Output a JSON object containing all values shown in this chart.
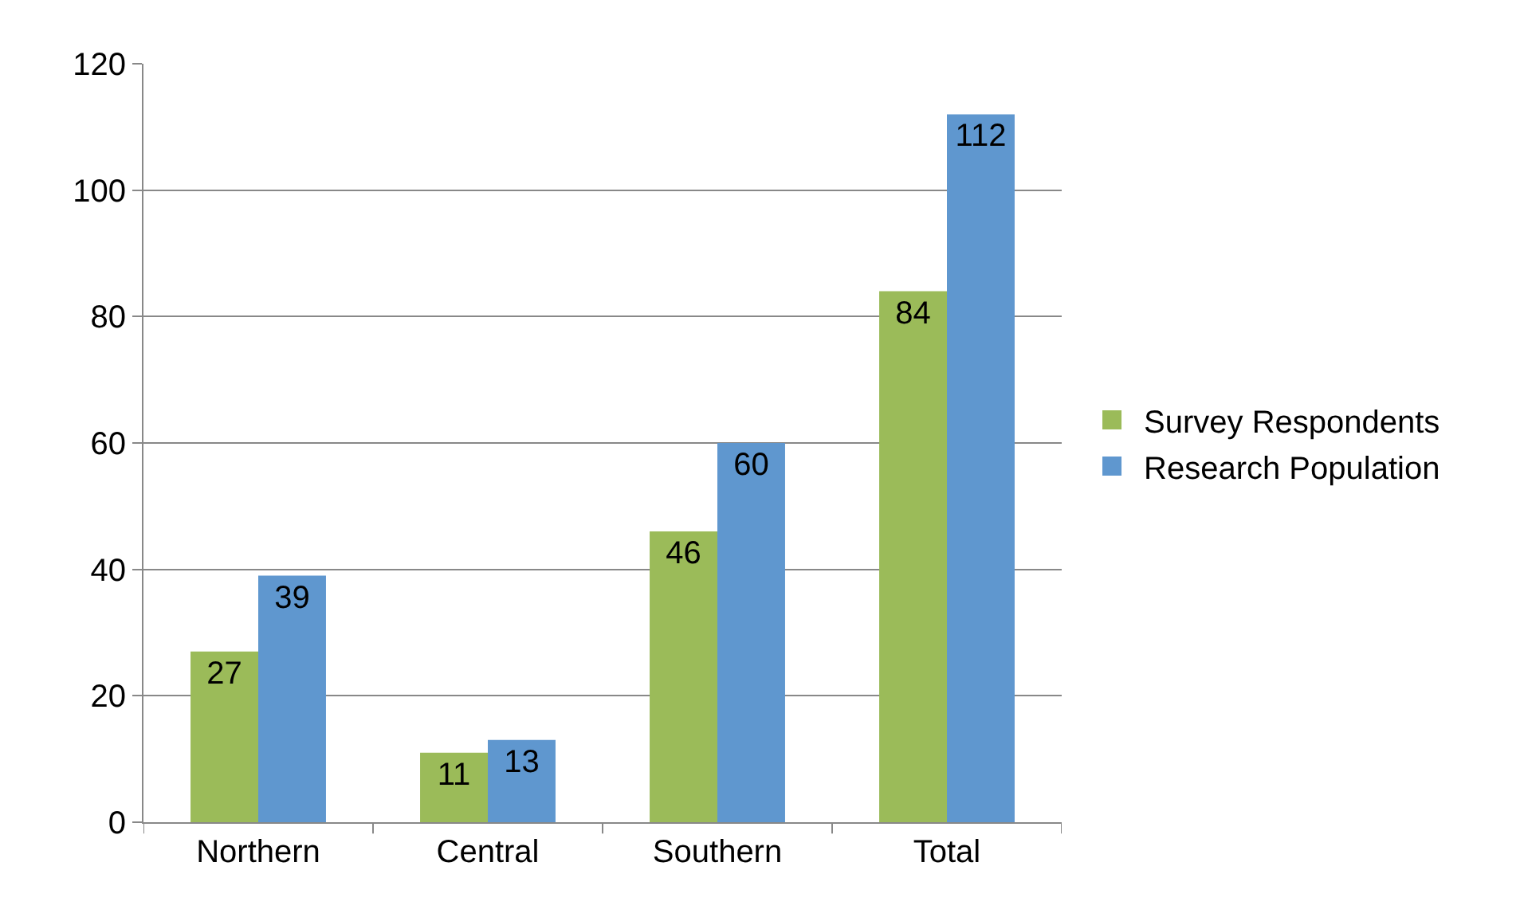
{
  "chart_data": {
    "type": "bar",
    "categories": [
      "Northern",
      "Central",
      "Southern",
      "Total"
    ],
    "series": [
      {
        "name": "Survey Respondents",
        "color": "#9bbb59",
        "values": [
          27,
          11,
          46,
          84
        ]
      },
      {
        "name": "Research Population",
        "color": "#5f97cf",
        "values": [
          39,
          13,
          60,
          112
        ]
      }
    ],
    "ylim": [
      0,
      120
    ],
    "yticks": [
      0,
      20,
      40,
      60,
      80,
      100,
      120
    ],
    "grid": "y",
    "legend": "right",
    "data_labels": true
  }
}
